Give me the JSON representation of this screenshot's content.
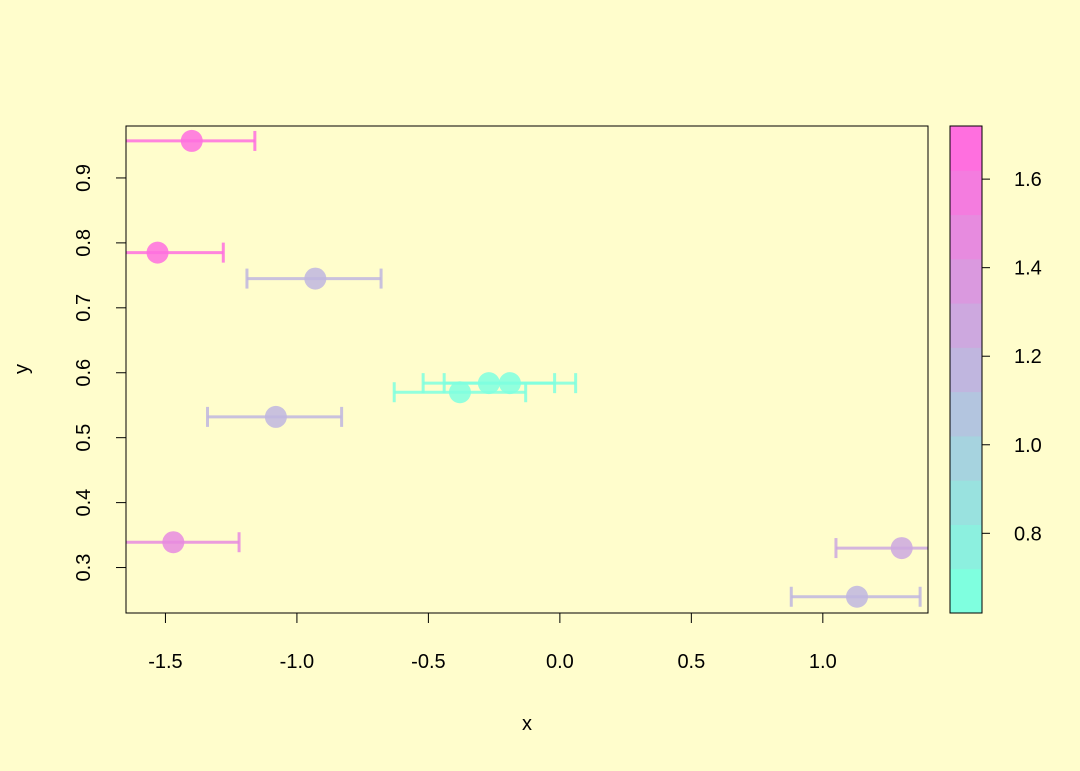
{
  "colors": {
    "background": "#FFFDCC",
    "axis": "#000000"
  },
  "chart_data": {
    "type": "scatter",
    "title": "",
    "xlabel": "x",
    "ylabel": "y",
    "xlim": [
      -1.65,
      1.4
    ],
    "ylim": [
      0.23,
      0.98
    ],
    "xticks": [
      -1.5,
      -1.0,
      -0.5,
      0.0,
      0.5,
      1.0
    ],
    "xtick_labels": [
      "-1.5",
      "-1.0",
      "-0.5",
      "0.0",
      "0.5",
      "1.0"
    ],
    "yticks": [
      0.3,
      0.4,
      0.5,
      0.6,
      0.7,
      0.8,
      0.9
    ],
    "ytick_labels": [
      "0.3",
      "0.4",
      "0.5",
      "0.6",
      "0.7",
      "0.8",
      "0.9"
    ],
    "grid": false,
    "error_bars": "horizontal",
    "points": [
      {
        "x": -1.4,
        "y": 0.957,
        "xmin": -1.65,
        "xmax": -1.16,
        "color_value": 1.62
      },
      {
        "x": -1.53,
        "y": 0.785,
        "xmin": -1.65,
        "xmax": -1.28,
        "color_value": 1.7
      },
      {
        "x": -0.93,
        "y": 0.745,
        "xmin": -1.19,
        "xmax": -0.68,
        "color_value": 1.12
      },
      {
        "x": -0.27,
        "y": 0.584,
        "xmin": -0.52,
        "xmax": -0.02,
        "color_value": 0.64
      },
      {
        "x": -0.19,
        "y": 0.584,
        "xmin": -0.44,
        "xmax": 0.06,
        "color_value": 0.66
      },
      {
        "x": -0.38,
        "y": 0.57,
        "xmin": -0.63,
        "xmax": -0.13,
        "color_value": 0.68
      },
      {
        "x": -1.08,
        "y": 0.532,
        "xmin": -1.34,
        "xmax": -0.83,
        "color_value": 1.12
      },
      {
        "x": -1.47,
        "y": 0.339,
        "xmin": -1.65,
        "xmax": -1.22,
        "color_value": 1.44
      },
      {
        "x": 1.3,
        "y": 0.33,
        "xmin": 1.05,
        "xmax": 1.4,
        "color_value": 1.22
      },
      {
        "x": 1.13,
        "y": 0.255,
        "xmin": 0.88,
        "xmax": 1.37,
        "color_value": 1.12
      }
    ],
    "colorbar": {
      "range": [
        0.62,
        1.72
      ],
      "ticks": [
        0.8,
        1.0,
        1.2,
        1.4,
        1.6
      ],
      "tick_labels": [
        "0.8",
        "1.0",
        "1.2",
        "1.4",
        "1.6"
      ],
      "colors": [
        "#7FFFDF",
        "#8CF0DF",
        "#99E2DF",
        "#A6D3DF",
        "#B3C5DF",
        "#C0B6DF",
        "#CDA8DF",
        "#DA99DF",
        "#E78BDF",
        "#F47CDF",
        "#FF6FDF"
      ]
    }
  }
}
